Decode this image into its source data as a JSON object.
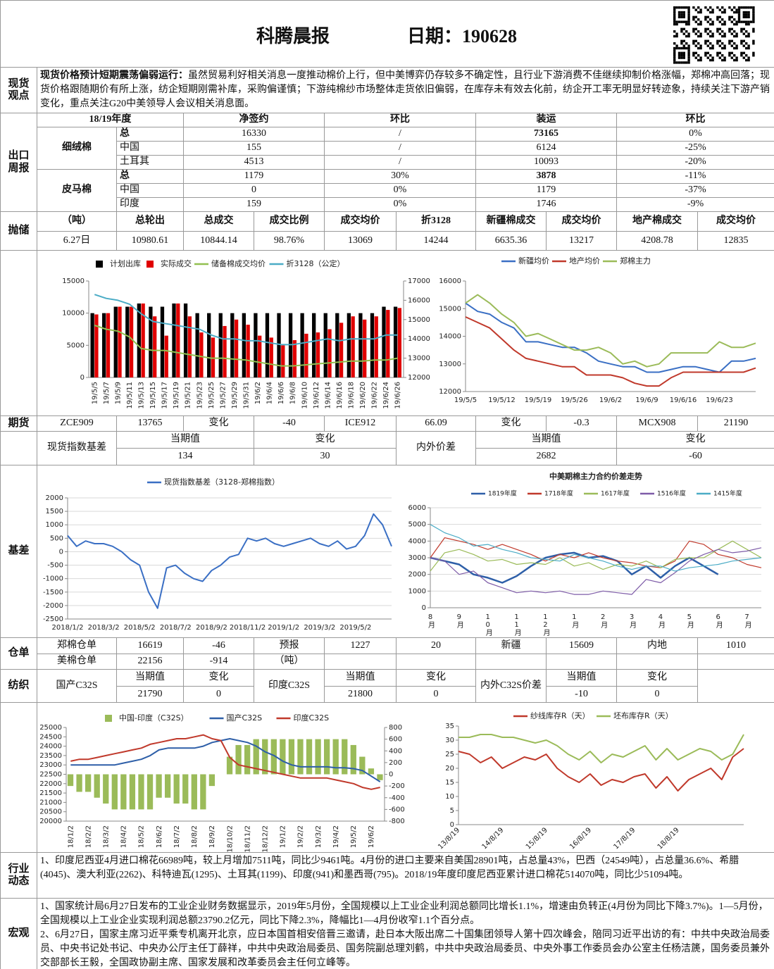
{
  "header": {
    "title": "科腾晨报",
    "date": "日期：190628"
  },
  "sections": {
    "spot_view": "现货观点",
    "export": "出口周报",
    "reserve": "抛储",
    "futures": "期货",
    "basis": "基差",
    "warehouse": "仓单",
    "textile": "纺织",
    "industry": "行业动态",
    "macro": "宏观"
  },
  "spot_view": {
    "lead": "现货价格预计短期震荡偏弱运行：",
    "text": "虽然贸易利好相关消息一度推动棉价上行，但中美博弈仍存较多不确定性，且行业下游消费不佳继续抑制价格涨幅，郑棉冲高回落；现货价格跟随期价有所上涨，纺企短期刚需补库，采购偏谨慎；下游纯棉纱市场整体走货依旧偏弱，在库存未有效去化前，纺企开工率无明显好转迹象，持续关注下游产销变化，重点关注G20中美领导人会议相关消息面。"
  },
  "export": {
    "header": [
      "18/19年度",
      "净签约",
      "环比",
      "装运",
      "环比"
    ],
    "groups": [
      {
        "name": "细绒棉",
        "rows": [
          [
            "总",
            "16330",
            "/",
            "73165",
            "0%"
          ],
          [
            "中国",
            "155",
            "/",
            "6124",
            "-25%"
          ],
          [
            "土耳其",
            "4513",
            "/",
            "10093",
            "-20%"
          ]
        ]
      },
      {
        "name": "皮马棉",
        "rows": [
          [
            "总",
            "1179",
            "30%",
            "3878",
            "-11%"
          ],
          [
            "中国",
            "0",
            "0%",
            "1179",
            "-37%"
          ],
          [
            "印度",
            "159",
            "0%",
            "1746",
            "-9%"
          ]
        ]
      }
    ]
  },
  "reserve": {
    "header": [
      "（吨）",
      "总轮出",
      "总成交",
      "成交比例",
      "成交均价",
      "折3128",
      "新疆棉成交",
      "成交均价",
      "地产棉成交",
      "成交均价"
    ],
    "row": [
      "6.27日",
      "10980.61",
      "10844.14",
      "98.76%",
      "13069",
      "14244",
      "6635.36",
      "13217",
      "4208.78",
      "12835"
    ]
  },
  "futures": {
    "row": [
      "ZCE909",
      "13765",
      "变化",
      "-40",
      "ICE912",
      "66.09",
      "变化",
      "-0.3",
      "MCX908",
      "21190"
    ],
    "spot_basis": {
      "label": "现货指数基差",
      "header": [
        "当期值",
        "变化"
      ],
      "values": [
        "134",
        "30"
      ]
    },
    "inner_outer": {
      "label": "内外价差",
      "header": [
        "当期值",
        "变化"
      ],
      "values": [
        "2682",
        "-60"
      ]
    }
  },
  "warehouse": {
    "rows": [
      [
        "郑棉仓单",
        "16619",
        "-46",
        "预报",
        "1227",
        "20",
        "新疆",
        "15609",
        "内地",
        "1010"
      ],
      [
        "美棉仓单",
        "22156",
        "-914",
        "（吨）"
      ]
    ]
  },
  "textile": {
    "header": [
      "国产C32S",
      "当期值",
      "变化",
      "印度C32S",
      "当期值",
      "变化",
      "内外C32S价差",
      "当期值",
      "变化"
    ],
    "values": [
      "21790",
      "0",
      "21800",
      "0",
      "-10",
      "0"
    ]
  },
  "industry": "1、印度尼西亚4月进口棉花66989吨，较上月增加7511吨，同比少9461吨。4月份的进口主要来自美国28901吨，占总量43%，巴西（24549吨），占总量36.6%、希腊(4045)、澳大利亚(2262)、科特迪瓦(1295)、土耳其(1199)、印度(941)和墨西哥(795)。2018/19年度印度尼西亚累计进口棉花514070吨，同比少51094吨。",
  "macro": [
    "1、国家统计局6月27日发布的工业企业财务数据显示，2019年5月份，全国规模以上工业企业利润总额同比增长1.1%，增速由负转正(4月份为同比下降3.7%)。1—5月份，全国规模以上工业企业实现利润总额23790.2亿元，同比下降2.3%，降幅比1—4月份收窄1.1个百分点。",
    "2、6月27日，国家主席习近平乘专机离开北京，应日本国首相安倍晋三邀请，赴日本大阪出席二十国集团领导人第十四次峰会，陪同习近平出访的有：中共中央政治局委员、中央书记处书记、中央办公厅主任丁薛祥，中共中央政治局委员、国务院副总理刘鹤，中共中央政治局委员、中央外事工作委员会办公室主任杨洁篪，国务委员兼外交部部长王毅，全国政协副主席、国家发展和改革委员会主任何立峰等。"
  ],
  "charts": [
    {
      "type": "combo",
      "categories": [
        "19/5/5",
        "19/5/7",
        "19/5/9",
        "19/5/11",
        "19/5/13",
        "19/5/15",
        "19/5/17",
        "19/5/19",
        "19/5/21",
        "19/5/23",
        "19/5/25",
        "19/5/27",
        "19/5/29",
        "19/5/31",
        "19/6/2",
        "19/6/4",
        "19/6/6",
        "19/6/8",
        "19/6/10",
        "19/6/12",
        "19/6/14",
        "19/6/16",
        "19/6/18",
        "19/6/20",
        "19/6/22",
        "19/6/24",
        "19/6/26"
      ],
      "series": [
        {
          "name": "计划出库",
          "kind": "bar",
          "color": "#000000",
          "values": [
            10000,
            10000,
            11000,
            11000,
            11500,
            11000,
            11000,
            11500,
            11500,
            10000,
            10000,
            10000,
            10000,
            10000,
            10000,
            10000,
            10000,
            10000,
            10000,
            10000,
            10000,
            10000,
            10000,
            10000,
            10000,
            11000,
            11000
          ]
        },
        {
          "name": "实际成交",
          "kind": "bar",
          "color": "#e00000",
          "values": [
            9800,
            10000,
            11000,
            11000,
            11500,
            9500,
            6500,
            11500,
            9500,
            7000,
            6200,
            8000,
            9000,
            8200,
            6500,
            6200,
            5000,
            5800,
            6800,
            7000,
            7500,
            8500,
            9500,
            9000,
            9500,
            10500,
            10800
          ]
        },
        {
          "name": "储备棉成交均价",
          "kind": "line",
          "axis": "y2",
          "color": "#92c050",
          "values": [
            14700,
            14500,
            14400,
            14100,
            13500,
            13400,
            13400,
            13300,
            13200,
            13100,
            13000,
            13000,
            12950,
            12900,
            12800,
            12700,
            12600,
            12600,
            12650,
            12700,
            12750,
            12800,
            12850,
            12850,
            12900,
            12900,
            13000
          ]
        },
        {
          "name": "折3128（公定）",
          "kind": "line",
          "axis": "y2",
          "color": "#4bacc6",
          "values": [
            16300,
            16100,
            16000,
            15800,
            15300,
            14900,
            14800,
            14700,
            14600,
            14500,
            14200,
            14000,
            14000,
            13900,
            13900,
            13800,
            13700,
            13700,
            13800,
            13900,
            14000,
            13900,
            14000,
            14000,
            14000,
            14200,
            14200
          ]
        }
      ],
      "ylim": [
        0,
        15000
      ],
      "yticks": [
        0,
        5000,
        10000,
        15000
      ],
      "y2lim": [
        12000,
        17000
      ],
      "y2ticks": [
        12000,
        13000,
        14000,
        15000,
        16000,
        17000
      ]
    },
    {
      "type": "line",
      "categories": [
        "19/5/5",
        null,
        null,
        "19/5/12",
        null,
        null,
        "19/5/19",
        null,
        null,
        "19/5/26",
        null,
        null,
        "19/6/2",
        null,
        null,
        "19/6/9",
        null,
        null,
        "19/6/16",
        null,
        null,
        "19/6/23",
        null,
        null,
        null
      ],
      "series": [
        {
          "name": "新疆均价",
          "color": "#3a6fc4",
          "values": [
            15200,
            14900,
            14800,
            14500,
            14300,
            13800,
            13800,
            13700,
            13600,
            13600,
            13400,
            13100,
            13000,
            12900,
            12900,
            12700,
            12700,
            12800,
            12900,
            12900,
            12800,
            12700,
            13100,
            13100,
            13200
          ]
        },
        {
          "name": "地产均价",
          "color": "#c0392b",
          "values": [
            14700,
            14500,
            14300,
            13900,
            13500,
            13200,
            13100,
            13000,
            12900,
            12900,
            12600,
            12600,
            12600,
            12500,
            12300,
            12200,
            12200,
            12500,
            12700,
            12700,
            12700,
            12700,
            12700,
            12700,
            12850
          ]
        },
        {
          "name": "郑棉主力",
          "color": "#9bbb59",
          "values": [
            15200,
            15500,
            15200,
            14800,
            14500,
            14000,
            14100,
            13900,
            13700,
            13500,
            13500,
            13600,
            13400,
            13000,
            13100,
            12900,
            13000,
            13400,
            13400,
            13400,
            13400,
            13800,
            13600,
            13600,
            13750
          ]
        }
      ],
      "ylim": [
        12000,
        16000
      ],
      "yticks": [
        12000,
        13000,
        14000,
        15000,
        16000
      ]
    },
    {
      "type": "line",
      "grid": true,
      "categories": [
        "2018/1/2",
        null,
        null,
        null,
        "2018/3/2",
        null,
        null,
        null,
        "2018/5/2",
        null,
        null,
        null,
        "2018/7/2",
        null,
        null,
        null,
        "2018/9/2",
        null,
        null,
        null,
        "2018/11/2",
        null,
        null,
        null,
        "2019/1/2",
        null,
        null,
        null,
        "2019/3/2",
        null,
        null,
        null,
        "2019/5/2",
        null,
        null,
        null,
        null
      ],
      "series": [
        {
          "name": "现货指数基差（3128-郑棉指数）",
          "color": "#3a6fc4",
          "values": [
            600,
            200,
            400,
            300,
            300,
            200,
            0,
            -300,
            -500,
            -1500,
            -2100,
            -600,
            -500,
            -800,
            -1000,
            -1100,
            -700,
            -500,
            -200,
            -100,
            500,
            400,
            500,
            300,
            200,
            300,
            400,
            500,
            300,
            200,
            400,
            100,
            200,
            600,
            1400,
            1000,
            200
          ]
        }
      ],
      "ylim": [
        -2500,
        2000
      ],
      "yticks": [
        -2500,
        -2000,
        -1500,
        -1000,
        -500,
        0,
        500,
        1000,
        1500,
        2000
      ]
    },
    {
      "type": "line",
      "grid": true,
      "title": "中美期棉主力合约价差走势",
      "categories": [
        "8月",
        null,
        "9月",
        null,
        "10月",
        null,
        "11月",
        null,
        "12月",
        null,
        "1月",
        null,
        "2月",
        null,
        "3月",
        null,
        "4月",
        null,
        "5月",
        null,
        "6月",
        null,
        "7月",
        null
      ],
      "series": [
        {
          "name": "1819年度",
          "color": "#2e5fa8",
          "values": [
            3000,
            2800,
            2600,
            2000,
            1800,
            1500,
            1900,
            2500,
            3000,
            3200,
            3300,
            3000,
            3100,
            2800,
            2000,
            2500,
            1800,
            2500,
            3000,
            2500,
            2000,
            null,
            null,
            null
          ]
        },
        {
          "name": "1718年度",
          "color": "#c0392b",
          "values": [
            3000,
            4200,
            4000,
            3800,
            3500,
            3800,
            3500,
            3200,
            2800,
            3200,
            3000,
            3300,
            3000,
            2800,
            2700,
            2500,
            2400,
            2800,
            4000,
            3800,
            3200,
            3000,
            2600,
            2400
          ]
        },
        {
          "name": "1617年度",
          "color": "#9bbb59",
          "values": [
            2200,
            3300,
            3500,
            3200,
            2800,
            2900,
            2600,
            2700,
            2600,
            3000,
            2500,
            2700,
            2300,
            2600,
            2500,
            2800,
            2400,
            2900,
            3000,
            3000,
            3500,
            4000,
            3500,
            3000
          ]
        },
        {
          "name": "1516年度",
          "color": "#7e5ca8",
          "values": [
            3000,
            2800,
            2000,
            2200,
            1500,
            1200,
            900,
            1000,
            900,
            1000,
            800,
            800,
            1000,
            900,
            800,
            1700,
            1500,
            2100,
            2800,
            3200,
            3500,
            3300,
            3400,
            3600
          ]
        },
        {
          "name": "1415年度",
          "color": "#4bacc6",
          "values": [
            5000,
            4500,
            4200,
            3700,
            3800,
            3500,
            3300,
            3000,
            2900,
            2800,
            3200,
            3000,
            2800,
            2500,
            2300,
            2500,
            2500,
            2200,
            2400,
            2500,
            2600,
            2800,
            2900,
            3000
          ]
        }
      ],
      "ylim": [
        0,
        6000
      ],
      "yticks": [
        0,
        1000,
        2000,
        3000,
        4000,
        5000,
        6000
      ]
    },
    {
      "type": "combo",
      "categories": [
        "18/1/2",
        null,
        "18/2/2",
        null,
        "18/3/2",
        null,
        "18/4/2",
        null,
        "18/5/2",
        null,
        "18/6/2",
        null,
        "18/7/2",
        null,
        "18/8/2",
        null,
        "18/9/2",
        null,
        "18/10/2",
        null,
        "18/11/2",
        null,
        "18/12/2",
        null,
        "19/1/2",
        null,
        "19/2/2",
        null,
        "19/3/2",
        null,
        "19/4/2",
        null,
        "19/5/2",
        null,
        "19/6/2",
        null
      ],
      "series": [
        {
          "name": "中国-印度（C32S）",
          "kind": "bar",
          "axis": "y2",
          "color": "#9bbb59",
          "values": [
            -200,
            -300,
            -300,
            -400,
            -500,
            -600,
            -600,
            -600,
            -600,
            -600,
            -400,
            -400,
            -500,
            -500,
            -600,
            -600,
            -200,
            0,
            300,
            500,
            500,
            600,
            600,
            600,
            600,
            600,
            600,
            600,
            600,
            600,
            600,
            600,
            500,
            300,
            100,
            -100
          ]
        },
        {
          "name": "国产C32S",
          "kind": "line",
          "color": "#2e5fa8",
          "values": [
            23000,
            23000,
            23000,
            23000,
            23000,
            23000,
            23100,
            23200,
            23300,
            23500,
            23800,
            23900,
            23900,
            23900,
            23900,
            24000,
            24200,
            24300,
            24400,
            24300,
            24200,
            24000,
            23700,
            23500,
            23200,
            23000,
            22900,
            22900,
            22900,
            22900,
            22850,
            22850,
            22800,
            22700,
            22400,
            22100
          ]
        },
        {
          "name": "印度C32S",
          "kind": "line",
          "color": "#c0392b",
          "values": [
            23200,
            23300,
            23300,
            23400,
            23500,
            23600,
            23700,
            23800,
            23900,
            24100,
            24200,
            24300,
            24400,
            24400,
            24500,
            24600,
            24400,
            24300,
            23400,
            23000,
            22900,
            22800,
            22700,
            22600,
            22500,
            22400,
            22300,
            22300,
            22300,
            22300,
            22200,
            22100,
            22000,
            21800,
            21700,
            21800
          ]
        }
      ],
      "ylim": [
        20000,
        25000
      ],
      "yticks": [
        20000,
        20500,
        21000,
        21500,
        22000,
        22500,
        23000,
        23500,
        24000,
        24500,
        25000
      ],
      "y2lim": [
        -800,
        800
      ],
      "y2ticks": [
        -800,
        -600,
        -400,
        -200,
        0,
        200,
        400,
        600,
        800
      ]
    },
    {
      "type": "line",
      "categories": [
        "13/8/19",
        null,
        null,
        null,
        "14/8/19",
        null,
        null,
        null,
        "15/8/19",
        null,
        null,
        null,
        "16/8/19",
        null,
        null,
        null,
        "17/8/19",
        null,
        null,
        null,
        "18/8/19",
        null,
        null,
        null,
        null,
        null,
        null
      ],
      "series": [
        {
          "name": "纱线库存R（天）",
          "color": "#c0392b",
          "values": [
            26,
            25,
            22,
            24,
            20,
            22,
            24,
            23,
            25,
            20,
            17,
            15,
            18,
            14,
            16,
            15,
            17,
            18,
            13,
            17,
            12,
            16,
            18,
            20,
            16,
            24,
            27
          ]
        },
        {
          "name": "坯布库存R（天）",
          "color": "#9bbb59",
          "values": [
            31,
            31,
            32,
            32,
            31,
            31,
            30,
            29,
            30,
            28,
            25,
            23,
            26,
            22,
            25,
            24,
            26,
            28,
            23,
            27,
            23,
            25,
            27,
            26,
            23,
            25,
            32
          ]
        }
      ],
      "ylim": [
        0,
        35
      ],
      "yticks": [
        0,
        5,
        10,
        15,
        20,
        25,
        30,
        35
      ]
    }
  ]
}
